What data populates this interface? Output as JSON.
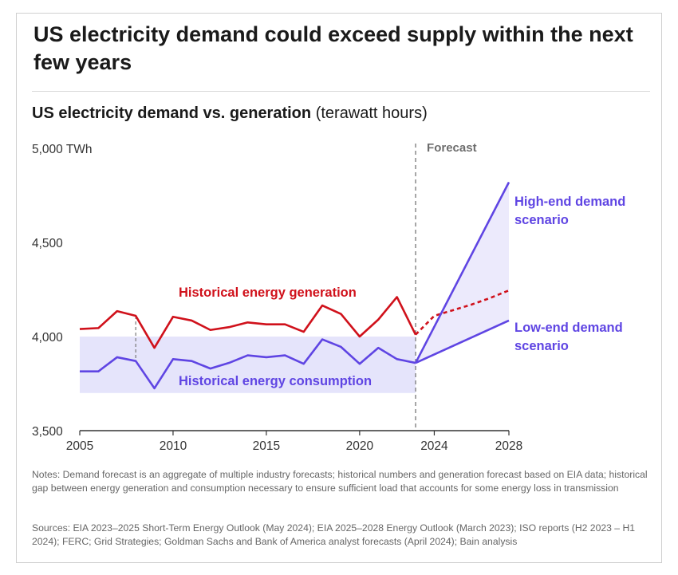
{
  "headline": "US electricity demand could exceed supply within the next few years",
  "subtitle_bold": "US electricity demand vs. generation",
  "subtitle_unit": "(terawatt hours)",
  "notes": "Notes: Demand forecast is an aggregate of multiple industry forecasts; historical numbers and generation forecast based on EIA data; historical gap between energy generation and consumption necessary to ensure sufficient load that accounts for some energy loss in transmission",
  "sources": "Sources: EIA 2023–2025 Short-Term Energy Outlook (May 2024); EIA 2025–2028 Energy Outlook (March 2023); ISO reports (H2 2023 – H1 2024); FERC; Grid Strategies; Goldman Sachs and Bank of America analyst forecasts (April 2024); Bain analysis",
  "colors": {
    "generation": "#d0111b",
    "consumption": "#5f45e3",
    "band": "#e5e4fb",
    "forecast_band": "#eceafc",
    "axis": "#333333",
    "forecast_line": "#777777"
  },
  "chart_data": {
    "type": "line",
    "title": "US electricity demand vs. generation",
    "units": "terawatt hours",
    "xlim": [
      2005,
      2028
    ],
    "ylim": [
      3500,
      5000
    ],
    "x_ticks": [
      2005,
      2010,
      2015,
      2020,
      2024,
      2028
    ],
    "y_ticks": [
      {
        "value": 3500,
        "label": "3,500"
      },
      {
        "value": 4000,
        "label": "4,000"
      },
      {
        "value": 4500,
        "label": "4,500"
      },
      {
        "value": 5000,
        "label": "5,000 TWh"
      }
    ],
    "forecast_start": 2023,
    "forecast_label": "Forecast",
    "series": [
      {
        "name": "Historical energy generation",
        "style": "solid",
        "x": [
          2005,
          2006,
          2007,
          2008,
          2009,
          2010,
          2011,
          2012,
          2013,
          2014,
          2015,
          2016,
          2017,
          2018,
          2019,
          2020,
          2021,
          2022,
          2023
        ],
        "y": [
          4040,
          4045,
          4135,
          4110,
          3940,
          4105,
          4085,
          4035,
          4050,
          4075,
          4065,
          4065,
          4025,
          4165,
          4120,
          4000,
          4090,
          4210,
          4010
        ]
      },
      {
        "name": "",
        "style": "dashed",
        "x": [
          2023,
          2024,
          2025,
          2026,
          2027,
          2028
        ],
        "y": [
          4010,
          4110,
          4140,
          4170,
          4205,
          4245
        ]
      },
      {
        "name": "Historical energy consumption",
        "style": "solid",
        "x": [
          2005,
          2006,
          2007,
          2008,
          2009,
          2010,
          2011,
          2012,
          2013,
          2014,
          2015,
          2016,
          2017,
          2018,
          2019,
          2020,
          2021,
          2022,
          2023
        ],
        "y": [
          3815,
          3815,
          3890,
          3870,
          3725,
          3880,
          3870,
          3830,
          3860,
          3900,
          3890,
          3900,
          3855,
          3985,
          3945,
          3855,
          3940,
          3880,
          3860
        ]
      },
      {
        "name": "High-end demand scenario",
        "style": "solid",
        "x": [
          2023,
          2028
        ],
        "y": [
          3860,
          4820
        ]
      },
      {
        "name": "Low-end demand scenario",
        "style": "solid",
        "x": [
          2023,
          2028
        ],
        "y": [
          3860,
          4085
        ]
      }
    ],
    "band": {
      "x": [
        2005,
        2023
      ],
      "y": [
        3700,
        4000
      ]
    },
    "gap_marker": {
      "x": 2008,
      "y": [
        3870,
        4110
      ]
    },
    "labels": {
      "generation": "Historical energy generation",
      "consumption": "Historical energy consumption",
      "high": [
        "High-end demand",
        "scenario"
      ],
      "low": [
        "Low-end demand",
        "scenario"
      ]
    }
  }
}
